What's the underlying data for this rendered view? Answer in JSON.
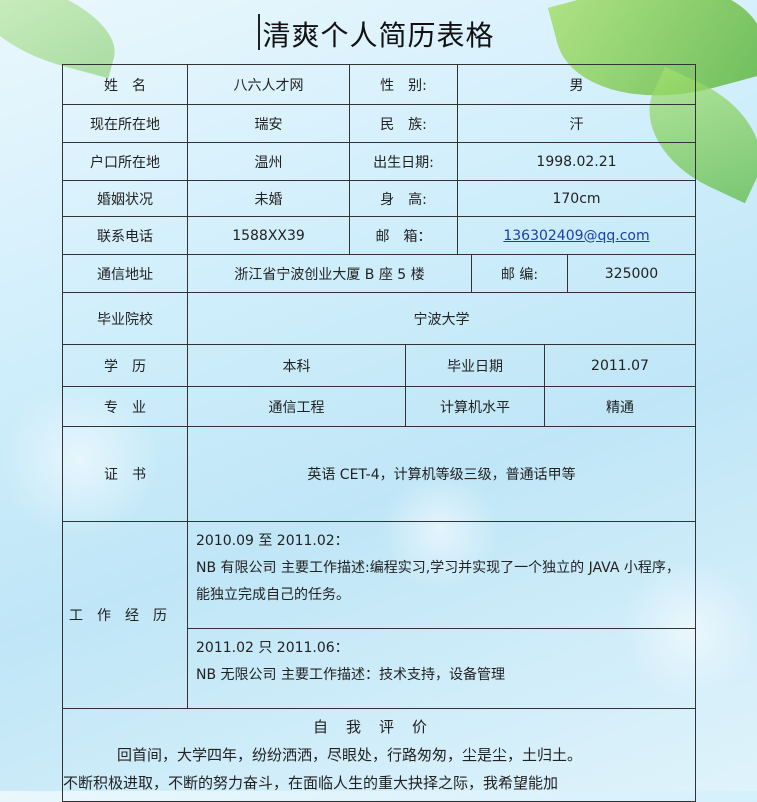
{
  "title": "清爽个人简历表格",
  "rows": {
    "name_label": "姓　名",
    "name_value": "八六人才网",
    "gender_label": "性　别:",
    "gender_value": "男",
    "location_label": "现在所在地",
    "location_value": "瑞安",
    "ethnic_label": "民　族:",
    "ethnic_value": "汗",
    "hukou_label": "户口所在地",
    "hukou_value": "温州",
    "birth_label": "出生日期:",
    "birth_value": "1998.02.21",
    "marital_label": "婚姻状况",
    "marital_value": "未婚",
    "height_label": "身　高:",
    "height_value": "170cm",
    "phone_label": "联系电话",
    "phone_value": "1588XX39",
    "email_label": "邮　箱：",
    "email_value": "136302409@qq.com",
    "address_label": "通信地址",
    "address_value": "浙江省宁波创业大厦 B 座 5 楼",
    "zip_label": "邮 编:",
    "zip_value": "325000",
    "school_label": "毕业院校",
    "school_value": "宁波大学",
    "degree_label": "学　历",
    "degree_value": "本科",
    "gradate_label": "毕业日期",
    "gradate_value": "2011.07",
    "major_label": "专　业",
    "major_value": "通信工程",
    "computer_label": "计算机水平",
    "computer_value": "精通",
    "cert_label": "证　书",
    "cert_value": "英语 CET-4，计算机等级三级，普通话甲等"
  },
  "experience": {
    "label": "工作经历",
    "entries": [
      {
        "period": "2010.09 至 2011.02：",
        "desc": "NB 有限公司 主要工作描述:编程实习,学习并实现了一个独立的 JAVA 小程序，能独立完成自己的任务。"
      },
      {
        "period": "2011.02 只 2011.06：",
        "desc": "NB 无限公司 主要工作描述：技术支持，设备管理"
      }
    ]
  },
  "self_eval": {
    "heading": "自我评价",
    "line1": "回首间，大学四年，纷纷洒洒，尽眼处，行路匆匆，尘是尘，土归土。",
    "line2": "不断积极进取，不断的努力奋斗，在面临人生的重大抉择之际，我希望能加"
  }
}
